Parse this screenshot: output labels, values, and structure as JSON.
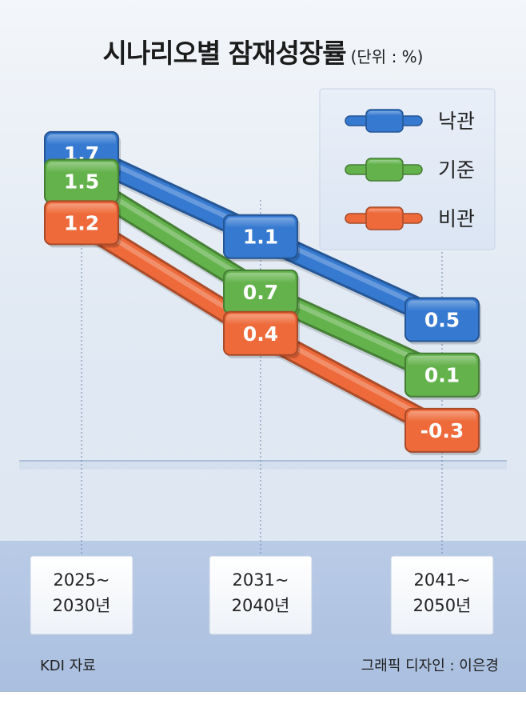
{
  "header": {
    "title": "시나리오별 잠재성장률",
    "unit": "(단위 : %)"
  },
  "footer": {
    "source": "KDI 자료",
    "credit": "그래픽 디자인 : 이은경"
  },
  "colors": {
    "optimistic": "#3579d0",
    "baseline": "#63b24c",
    "pessimistic": "#ee6a3a",
    "background_top": "#e9eef6",
    "background_bottom": "#b7c8e4"
  },
  "chart_data": {
    "type": "line",
    "categories": [
      "2025~\n2030년",
      "2031~\n2040년",
      "2041~\n2050년"
    ],
    "series": [
      {
        "name": "낙관",
        "values": [
          1.7,
          1.1,
          0.5
        ],
        "color": "#3579d0"
      },
      {
        "name": "기준",
        "values": [
          1.5,
          0.7,
          0.1
        ],
        "color": "#63b24c"
      },
      {
        "name": "비관",
        "values": [
          1.2,
          0.4,
          -0.3
        ],
        "color": "#ee6a3a"
      }
    ],
    "value_labels": [
      [
        "1.7",
        "1.1",
        "0.5"
      ],
      [
        "1.5",
        "0.7",
        "0.1"
      ],
      [
        "1.2",
        "0.4",
        "-0.3"
      ]
    ],
    "ylim": [
      -0.5,
      2.0
    ],
    "legend_position": "top-right",
    "grid": false
  }
}
